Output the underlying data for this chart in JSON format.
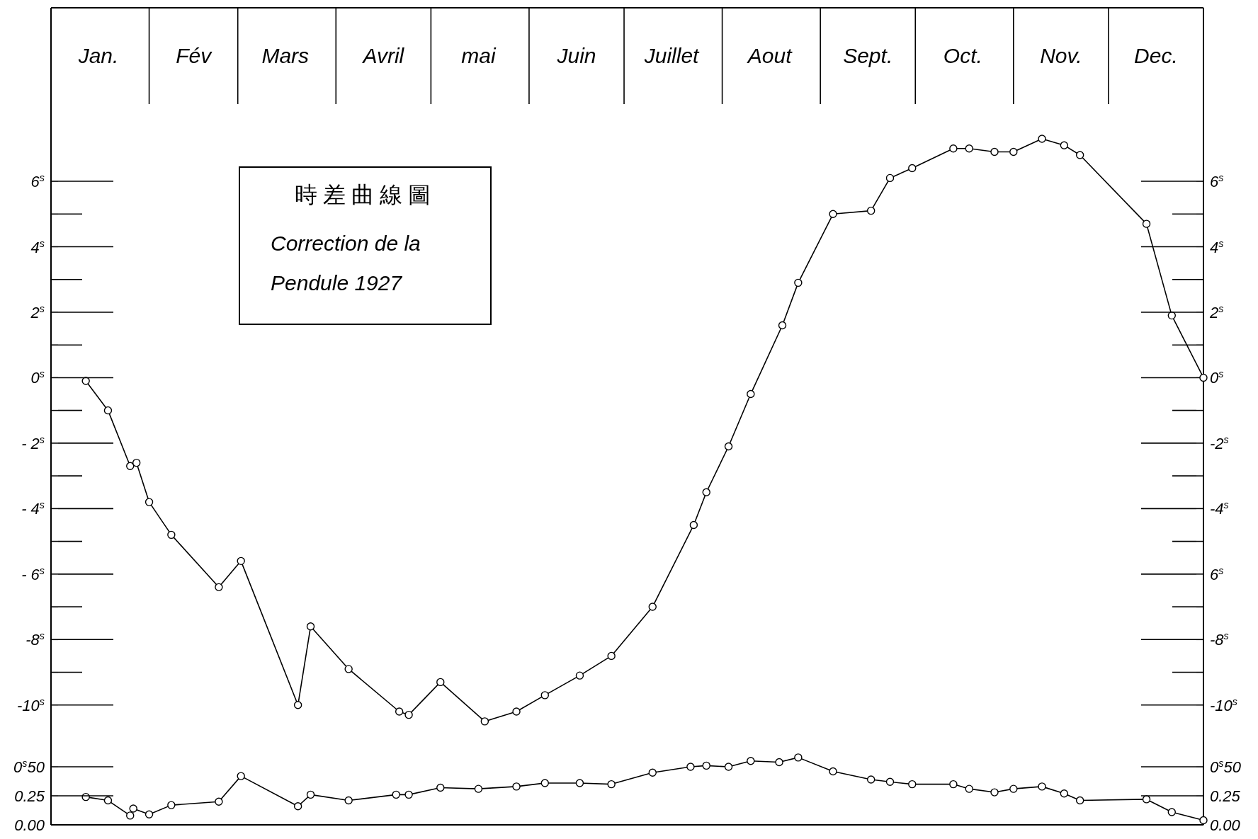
{
  "chart_data": [
    {
      "type": "line",
      "title": "時差曲線圖",
      "subtitle": "Correction de la Pendule 1927",
      "x": [
        "--01-12",
        "--01-19",
        "--01-26",
        "--01-28",
        "--02-01",
        "--02-08",
        "--02-23",
        "--03-02",
        "--03-20",
        "--03-24",
        "--04-05",
        "--04-21",
        "--04-24",
        "--05-04",
        "--05-18",
        "--05-28",
        "--06-06",
        "--06-17",
        "--06-27",
        "--07-10",
        "--07-23",
        "--07-27",
        "--08-03",
        "--08-10",
        "--08-20",
        "--08-25",
        "--09-05",
        "--09-17",
        "--09-23",
        "--09-30",
        "--10-13",
        "--10-18",
        "--10-26",
        "--11-01",
        "--11-10",
        "--11-17",
        "--11-22",
        "--12-13",
        "--12-21",
        "--12-31"
      ],
      "values": [
        -0.1,
        -1.0,
        -2.7,
        -2.6,
        -3.8,
        -4.8,
        -6.4,
        -5.6,
        -10.0,
        -7.6,
        -8.9,
        -10.2,
        -10.3,
        -9.3,
        -10.5,
        -10.2,
        -9.7,
        -9.1,
        -8.5,
        -7.0,
        -4.5,
        -3.5,
        -2.1,
        -0.5,
        1.6,
        2.9,
        5.0,
        5.1,
        6.1,
        6.4,
        7.0,
        7.0,
        6.9,
        6.9,
        7.3,
        7.1,
        6.8,
        4.7,
        1.9,
        0.0
      ],
      "color": "#000000",
      "marker": "circle",
      "line_style": "solid",
      "xlim": [
        "--01-01",
        "--12-31"
      ],
      "xticks": [
        {
          "value": "--01-16",
          "label": "Jan."
        },
        {
          "value": "--02-01",
          "label": null
        },
        {
          "value": "--02-15",
          "label": "Fév"
        },
        {
          "value": "--03-01",
          "label": null
        },
        {
          "value": "--03-16",
          "label": "Mars"
        },
        {
          "value": "--04-01",
          "label": null
        },
        {
          "value": "--04-16",
          "label": "Avril"
        },
        {
          "value": "--05-01",
          "label": null
        },
        {
          "value": "--05-16",
          "label": "mai"
        },
        {
          "value": "--06-01",
          "label": null
        },
        {
          "value": "--06-16",
          "label": "Juin"
        },
        {
          "value": "--07-01",
          "label": null
        },
        {
          "value": "--07-16",
          "label": "Juillet"
        },
        {
          "value": "--08-01",
          "label": null
        },
        {
          "value": "--08-16",
          "label": "Aout"
        },
        {
          "value": "--09-01",
          "label": null
        },
        {
          "value": "--09-16",
          "label": "Sept."
        },
        {
          "value": "--10-01",
          "label": null
        },
        {
          "value": "--10-16",
          "label": "Oct."
        },
        {
          "value": "--11-01",
          "label": null
        },
        {
          "value": "--11-16",
          "label": "Nov."
        },
        {
          "value": "--12-01",
          "label": null
        },
        {
          "value": "--12-16",
          "label": "Dec."
        }
      ],
      "ylim": [
        -11,
        11.3
      ],
      "yticks": [
        {
          "value": 6,
          "label": "6$^{s}$"
        },
        {
          "value": 5,
          "label": null
        },
        {
          "value": 4,
          "label": "4$^{s}$"
        },
        {
          "value": 3,
          "label": null
        },
        {
          "value": 2,
          "label": "2$^{s}$"
        },
        {
          "value": 1,
          "label": null
        },
        {
          "value": 0,
          "label": "0$^{s}$"
        },
        {
          "value": -1,
          "label": null
        },
        {
          "value": -2,
          "label": "- 2$^{s}$"
        },
        {
          "value": -3,
          "label": null
        },
        {
          "value": -4,
          "label": "- 4$^{s}$"
        },
        {
          "value": -5,
          "label": null
        },
        {
          "value": -6,
          "label": "- 6$^{s}$"
        },
        {
          "value": -7,
          "label": null
        },
        {
          "value": -8,
          "label": "-8$^{s}$"
        },
        {
          "value": -9,
          "label": null
        },
        {
          "value": -10,
          "label": "-10$^{s}$"
        }
      ],
      "y2lim": [
        -11,
        11.3
      ],
      "y2ticks": [
        {
          "value": 6,
          "label": "6$^{s}$"
        },
        {
          "value": 5,
          "label": null
        },
        {
          "value": 4,
          "label": "4$^{s}$"
        },
        {
          "value": 3,
          "label": null
        },
        {
          "value": 2,
          "label": "2$^{s}$"
        },
        {
          "value": 1,
          "label": null
        },
        {
          "value": 0,
          "label": "0$^{s}$"
        },
        {
          "value": -1,
          "label": null
        },
        {
          "value": -2,
          "label": "-2$^{s}$"
        },
        {
          "value": -3,
          "label": null
        },
        {
          "value": -4,
          "label": "-4$^{s}$"
        },
        {
          "value": -5,
          "label": null
        },
        {
          "value": -6,
          "label": "6$^{s}$"
        },
        {
          "value": -7,
          "label": null
        },
        {
          "value": -8,
          "label": "-8$^{s}$"
        },
        {
          "value": -9,
          "label": null
        },
        {
          "value": -10,
          "label": "-10$^{s}$"
        }
      ]
    },
    {
      "type": "line",
      "x": [
        "--01-12",
        "--01-19",
        "--01-26",
        "--01-27",
        "--02-01",
        "--02-08",
        "--02-23",
        "--03-02",
        "--03-20",
        "--03-24",
        "--04-05",
        "--04-20",
        "--04-24",
        "--05-04",
        "--05-16",
        "--05-28",
        "--06-06",
        "--06-17",
        "--06-27",
        "--07-10",
        "--07-22",
        "--07-27",
        "--08-03",
        "--08-10",
        "--08-19",
        "--08-25",
        "--09-05",
        "--09-17",
        "--09-23",
        "--09-30",
        "--10-13",
        "--10-18",
        "--10-26",
        "--11-01",
        "--11-10",
        "--11-17",
        "--11-22",
        "--12-13",
        "--12-21",
        "--12-31"
      ],
      "values": [
        0.24,
        0.21,
        0.08,
        0.14,
        0.09,
        0.17,
        0.2,
        0.42,
        0.16,
        0.26,
        0.21,
        0.26,
        0.26,
        0.32,
        0.31,
        0.33,
        0.36,
        0.36,
        0.35,
        0.45,
        0.5,
        0.51,
        0.5,
        0.55,
        0.54,
        0.58,
        0.46,
        0.39,
        0.37,
        0.35,
        0.35,
        0.31,
        0.28,
        0.31,
        0.33,
        0.27,
        0.21,
        0.22,
        0.11,
        0.04
      ],
      "color": "#000000",
      "marker": "circle",
      "line_style": "solid",
      "tick_labels": "y",
      "xlim": [
        "--01-01",
        "--12-31"
      ],
      "ylim": [
        0,
        0.75
      ],
      "yticks": [
        {
          "value": 0.5,
          "label": "0$^{s}$50"
        },
        {
          "value": 0.25,
          "label": "0.25"
        },
        {
          "value": 0,
          "label": "0.00"
        }
      ],
      "y2lim": [
        0,
        0.75
      ],
      "y2ticks": [
        {
          "value": 0.5,
          "label": "0$^{s}$50"
        },
        {
          "value": 0.25,
          "label": "0.25"
        },
        {
          "value": 0,
          "label": "0.00"
        }
      ]
    }
  ]
}
